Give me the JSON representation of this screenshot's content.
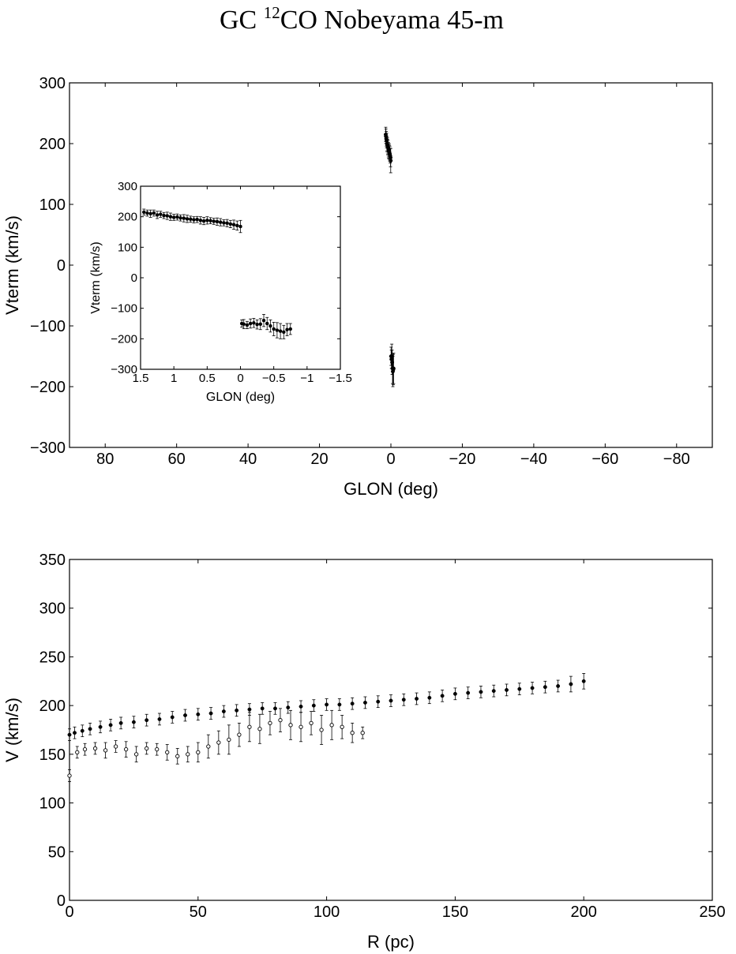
{
  "figure": {
    "title_prefix": "GC ",
    "title_superscript": "12",
    "title_suffix": "CO Nobeyama 45-m"
  },
  "chart_data": [
    {
      "id": "main-lv",
      "type": "scatter",
      "xlabel": "GLON (deg)",
      "ylabel": "Vterm (km/s)",
      "xlim": [
        90,
        -90
      ],
      "ylim": [
        -300,
        300
      ],
      "xticks": [
        80,
        60,
        40,
        20,
        0,
        -20,
        -40,
        -60,
        -80
      ],
      "yticks": [
        300,
        200,
        100,
        0,
        -100,
        -200,
        -300
      ],
      "grid": false,
      "series": [
        {
          "marker": "filled-circle",
          "color": "#000000",
          "x": [
            1.45,
            1.4,
            1.3,
            1.2,
            1.1,
            1.0,
            0.9,
            0.8,
            0.7,
            0.6,
            0.5,
            0.4,
            0.3,
            0.2,
            0.1,
            0.05,
            -0.05,
            -0.15,
            -0.25,
            -0.35,
            -0.45,
            -0.55,
            -0.65,
            -0.75
          ],
          "y": [
            215,
            212,
            208,
            205,
            200,
            198,
            195,
            193,
            190,
            188,
            187,
            185,
            183,
            180,
            177,
            172,
            -150,
            -155,
            -150,
            -160,
            -170,
            -175,
            -172,
            -170
          ],
          "yerr": [
            12,
            12,
            12,
            12,
            12,
            12,
            12,
            12,
            12,
            12,
            12,
            12,
            12,
            12,
            15,
            20,
            15,
            15,
            20,
            20,
            25,
            25,
            25,
            25
          ]
        }
      ]
    },
    {
      "id": "inset-lv",
      "type": "scatter",
      "xlabel": "GLON (deg)",
      "ylabel": "Vterm (km/s)",
      "xlim": [
        1.5,
        -1.5
      ],
      "ylim": [
        -300,
        300
      ],
      "xticks": [
        1.5,
        1,
        0.5,
        0,
        -0.5,
        -1,
        -1.5
      ],
      "xtick_labels": [
        "1.5",
        "1",
        "0.5",
        "0",
        "−0.5",
        "−1",
        "−1.5"
      ],
      "yticks": [
        300,
        200,
        100,
        0,
        -100,
        -200,
        -300
      ],
      "grid": false,
      "series": [
        {
          "marker": "filled-circle",
          "color": "#000000",
          "x": [
            1.45,
            1.4,
            1.35,
            1.3,
            1.25,
            1.2,
            1.15,
            1.1,
            1.05,
            1.0,
            0.95,
            0.9,
            0.85,
            0.8,
            0.75,
            0.7,
            0.65,
            0.6,
            0.55,
            0.5,
            0.45,
            0.4,
            0.35,
            0.3,
            0.25,
            0.2,
            0.15,
            0.1,
            0.05,
            0.0,
            -0.02,
            -0.05,
            -0.1,
            -0.15,
            -0.2,
            -0.25,
            -0.3,
            -0.35,
            -0.4,
            -0.45,
            -0.5,
            -0.55,
            -0.6,
            -0.65,
            -0.7,
            -0.75
          ],
          "y": [
            215,
            212,
            210,
            212,
            206,
            208,
            204,
            203,
            200,
            198,
            199,
            196,
            195,
            193,
            192,
            190,
            191,
            188,
            186,
            188,
            187,
            185,
            184,
            182,
            180,
            179,
            176,
            174,
            171,
            168,
            -150,
            -152,
            -155,
            -150,
            -148,
            -153,
            -152,
            -140,
            -150,
            -158,
            -168,
            -172,
            -175,
            -178,
            -170,
            -168
          ],
          "yerr": [
            10,
            10,
            12,
            10,
            12,
            10,
            10,
            12,
            12,
            10,
            10,
            10,
            12,
            12,
            10,
            10,
            10,
            12,
            12,
            12,
            10,
            10,
            12,
            12,
            10,
            12,
            12,
            15,
            15,
            20,
            12,
            15,
            12,
            15,
            15,
            15,
            18,
            20,
            20,
            20,
            22,
            25,
            25,
            22,
            20,
            18
          ]
        }
      ]
    },
    {
      "id": "rotation-curve",
      "type": "scatter",
      "xlabel": "R (pc)",
      "ylabel": "V (km/s)",
      "xlim": [
        0,
        250
      ],
      "ylim": [
        0,
        350
      ],
      "xticks": [
        0,
        50,
        100,
        150,
        200,
        250
      ],
      "yticks": [
        350,
        300,
        250,
        200,
        150,
        100,
        50,
        0
      ],
      "grid": false,
      "series": [
        {
          "marker": "filled-circle",
          "color": "#000000",
          "x": [
            0,
            2,
            5,
            8,
            12,
            16,
            20,
            25,
            30,
            35,
            40,
            45,
            50,
            55,
            60,
            65,
            70,
            75,
            80,
            85,
            90,
            95,
            100,
            105,
            110,
            115,
            120,
            125,
            130,
            135,
            140,
            145,
            150,
            155,
            160,
            165,
            170,
            175,
            180,
            185,
            190,
            195,
            200
          ],
          "y": [
            170,
            172,
            174,
            176,
            178,
            180,
            182,
            183,
            185,
            186,
            188,
            190,
            191,
            192,
            194,
            195,
            196,
            197,
            197,
            198,
            199,
            200,
            201,
            201,
            202,
            203,
            204,
            205,
            206,
            207,
            208,
            210,
            212,
            213,
            214,
            215,
            216,
            217,
            218,
            219,
            220,
            222,
            225
          ],
          "yerr": [
            6,
            6,
            6,
            6,
            6,
            6,
            6,
            6,
            6,
            6,
            6,
            6,
            6,
            6,
            6,
            6,
            6,
            6,
            6,
            6,
            6,
            6,
            6,
            6,
            6,
            6,
            6,
            6,
            6,
            6,
            6,
            6,
            6,
            6,
            6,
            6,
            6,
            6,
            6,
            6,
            6,
            8,
            8
          ]
        },
        {
          "marker": "open-circle",
          "color": "#000000",
          "x": [
            0,
            3,
            6,
            10,
            14,
            18,
            22,
            26,
            30,
            34,
            38,
            42,
            46,
            50,
            54,
            58,
            62,
            66,
            70,
            74,
            78,
            82,
            86,
            90,
            94,
            98,
            102,
            106,
            110,
            114
          ],
          "y": [
            128,
            152,
            155,
            156,
            154,
            158,
            155,
            150,
            156,
            155,
            152,
            148,
            150,
            152,
            158,
            162,
            165,
            170,
            178,
            176,
            182,
            185,
            180,
            178,
            182,
            175,
            180,
            178,
            172,
            172
          ],
          "yerr": [
            6,
            6,
            6,
            6,
            8,
            6,
            8,
            8,
            6,
            6,
            8,
            8,
            8,
            10,
            12,
            12,
            15,
            12,
            15,
            15,
            12,
            12,
            15,
            15,
            12,
            15,
            15,
            12,
            10,
            6
          ]
        }
      ]
    }
  ]
}
